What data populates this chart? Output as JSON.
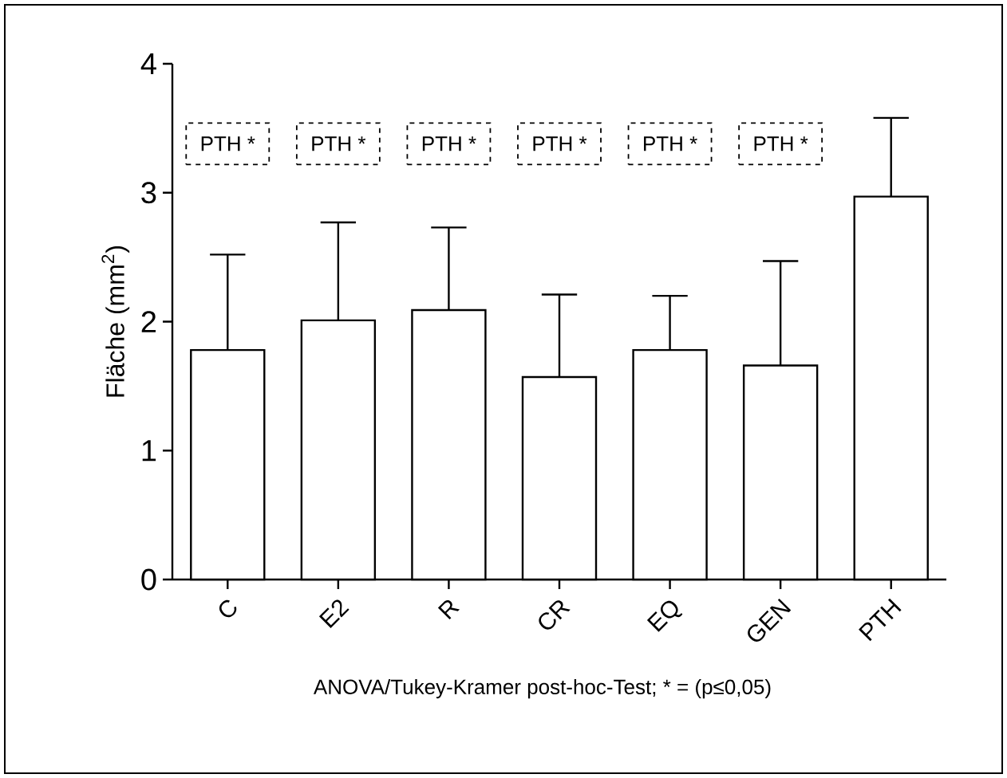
{
  "chart_data": {
    "type": "bar",
    "ylabel": "Fläche (mm$^{2}$)",
    "categories": [
      "C",
      "E2",
      "R",
      "CR",
      "EQ",
      "GEN",
      "PTH"
    ],
    "values": [
      1.78,
      2.01,
      2.09,
      1.57,
      1.78,
      1.66,
      2.97
    ],
    "color": "#ffffff",
    "errors": [
      [
        1.78,
        2.52
      ],
      [
        2.01,
        2.77
      ],
      [
        2.09,
        2.73
      ],
      [
        1.57,
        2.21
      ],
      [
        1.78,
        2.2
      ],
      [
        1.66,
        2.47
      ],
      [
        2.97,
        3.58
      ]
    ],
    "ylim": [
      0,
      4
    ],
    "yticks": [
      0,
      1,
      2,
      3,
      4
    ],
    "grid": false,
    "annotations": [
      "PTH *",
      "PTH *",
      "PTH *",
      "PTH *",
      "PTH *",
      "PTH *",
      "ANOVA/Tukey-Kramer post-hoc-Test; * = (p≤0,05)"
    ]
  }
}
